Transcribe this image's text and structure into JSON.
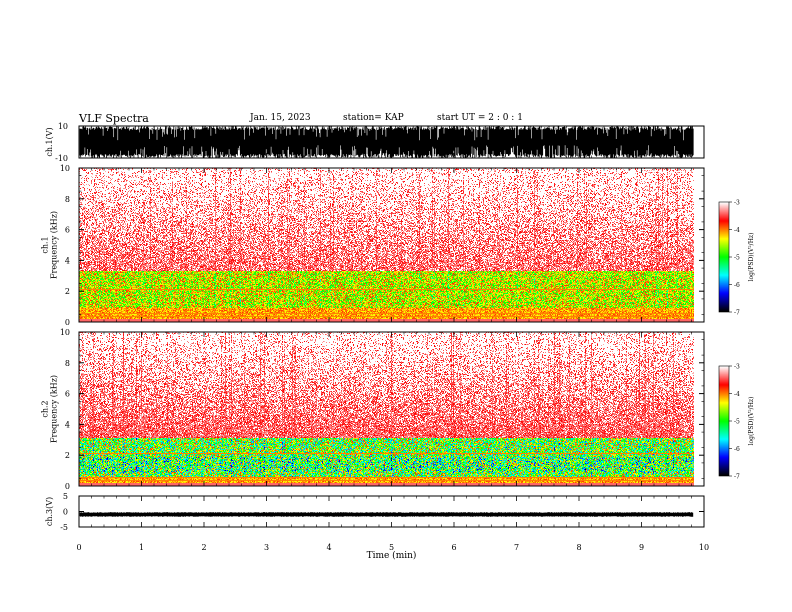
{
  "header": {
    "title": "VLF Spectra",
    "date": "Jan. 15, 2023",
    "station": "station= KAP",
    "start_ut": "start UT =  2 : 0 : 1"
  },
  "colors": {
    "colormap": [
      "#000000",
      "#0000ff",
      "#00ffff",
      "#00ff00",
      "#ffff00",
      "#ff0000",
      "#ffffff"
    ]
  },
  "chart_data": [
    {
      "type": "line",
      "name": "ch1-waveform",
      "ylabel": "ch.1(V)",
      "ylim": [
        -10,
        10
      ],
      "ytick_labels": [
        "-10",
        "10"
      ],
      "xlim": [
        0,
        10
      ],
      "fill": "dense black signal spanning nearly full range"
    },
    {
      "type": "heatmap",
      "name": "ch1-spectrogram",
      "ylabel": "ch.1\nFrequency (kHz)",
      "ylim": [
        0,
        10
      ],
      "ytick_values": [
        0,
        2,
        4,
        6,
        8,
        10
      ],
      "xlim": [
        0,
        10
      ],
      "data_end_min": 9.83,
      "strong_band_khz": [
        0.9,
        3.3
      ],
      "colorbar": {
        "label": "log(PSD)(V²/Hz)",
        "range": [
          -7,
          -3
        ],
        "ticks": [
          "-3",
          "-4",
          "-5",
          "-6",
          "-7"
        ]
      }
    },
    {
      "type": "heatmap",
      "name": "ch2-spectrogram",
      "ylabel": "ch.2\nFrequency (kHz)",
      "ylim": [
        0,
        10
      ],
      "ytick_values": [
        0,
        2,
        4,
        6,
        8,
        10
      ],
      "xlim": [
        0,
        10
      ],
      "data_end_min": 9.83,
      "strong_band_khz": [
        0.5,
        3.1
      ],
      "colorbar": {
        "label": "log(PSD)(V²/Hz)",
        "range": [
          -7,
          -3
        ],
        "ticks": [
          "-3",
          "-4",
          "-5",
          "-6",
          "-7"
        ]
      }
    },
    {
      "type": "line",
      "name": "ch3-waveform",
      "ylabel": "ch.3(V)",
      "ylim": [
        -5,
        5
      ],
      "ytick_labels": [
        "-5",
        "0",
        "5"
      ],
      "xlim": [
        0,
        10
      ],
      "level": -1
    }
  ],
  "xaxis": {
    "label": "Time (min)",
    "tick_labels": [
      "0",
      "1",
      "2",
      "3",
      "4",
      "5",
      "6",
      "7",
      "8",
      "9",
      "10"
    ]
  }
}
